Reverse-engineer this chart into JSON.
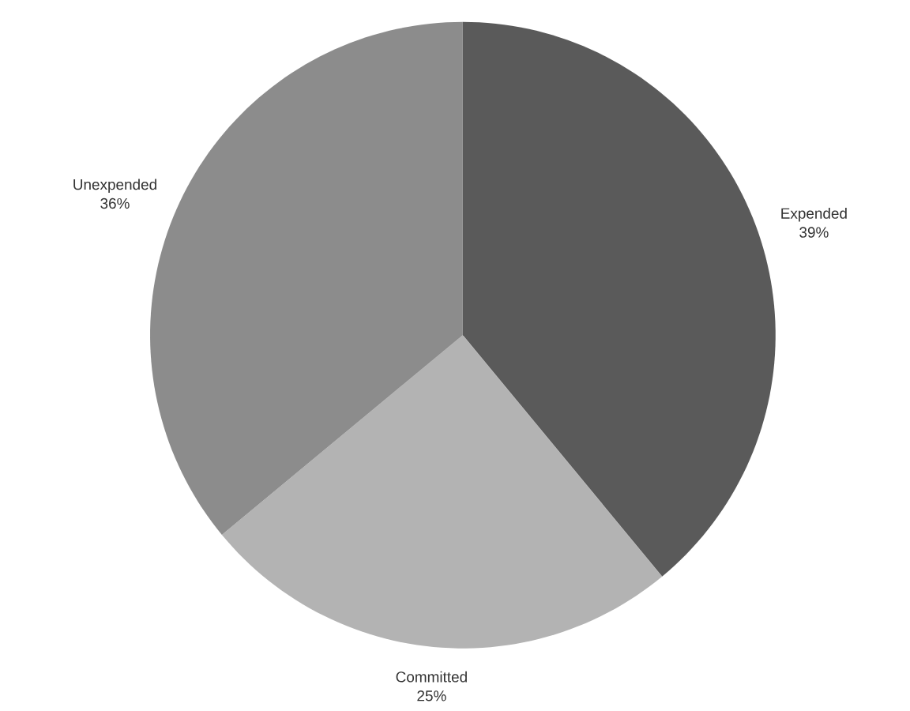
{
  "chart_data": {
    "type": "pie",
    "categories": [
      "Expended",
      "Committed",
      "Unexpended"
    ],
    "values": [
      39,
      25,
      36
    ],
    "value_labels": [
      "39%",
      "25%",
      "36%"
    ],
    "colors": [
      "#5a5a5a",
      "#b3b3b3",
      "#8c8c8c"
    ],
    "legend": false
  }
}
